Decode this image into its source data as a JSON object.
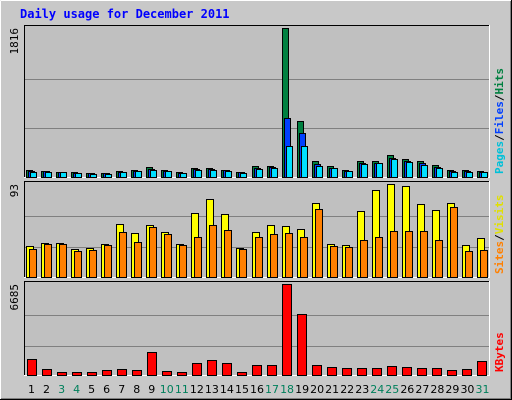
{
  "chart_data": {
    "type": "bar",
    "title": "Daily usage for December 2011",
    "categories": [
      "1",
      "2",
      "3",
      "4",
      "5",
      "6",
      "7",
      "8",
      "9",
      "10",
      "11",
      "12",
      "13",
      "14",
      "15",
      "16",
      "17",
      "18",
      "19",
      "20",
      "21",
      "22",
      "23",
      "24",
      "25",
      "26",
      "27",
      "28",
      "29",
      "30",
      "31"
    ],
    "weekend_days": [
      "3",
      "4",
      "10",
      "11",
      "17",
      "18",
      "24",
      "25",
      "31"
    ],
    "panels": [
      {
        "id": "hits",
        "ymax": 1816,
        "ymax_label": "1816",
        "series": [
          {
            "name": "Hits",
            "values": [
              80,
              75,
              65,
              55,
              50,
              50,
              70,
              85,
              120,
              85,
              55,
              110,
              110,
              90,
              65,
              130,
              140,
              1816,
              680,
              190,
              130,
              85,
              195,
              200,
              270,
              220,
              190,
              145,
              80,
              80,
              70
            ]
          },
          {
            "name": "Files",
            "values": [
              70,
              68,
              60,
              52,
              47,
              47,
              60,
              75,
              100,
              75,
              50,
              95,
              95,
              80,
              58,
              110,
              120,
              720,
              540,
              160,
              115,
              75,
              170,
              175,
              230,
              190,
              165,
              125,
              70,
              70,
              62
            ]
          },
          {
            "name": "Pages",
            "values": [
              65,
              62,
              55,
              48,
              42,
              42,
              55,
              70,
              90,
              70,
              45,
              90,
              90,
              72,
              52,
              100,
              110,
              380,
              380,
              140,
              105,
              68,
              160,
              170,
              220,
              180,
              150,
              115,
              65,
              65,
              58
            ]
          }
        ],
        "axis_label": [
          {
            "text": "Pages",
            "color": "#00c0d8"
          },
          {
            "text": "/",
            "color": "#000000"
          },
          {
            "text": "Files",
            "color": "#0040ff"
          },
          {
            "text": "/",
            "color": "#000000"
          },
          {
            "text": "Hits",
            "color": "#008040"
          }
        ]
      },
      {
        "id": "visits",
        "ymax": 93,
        "ymax_label": "93",
        "series": [
          {
            "name": "Visits",
            "values": [
              31,
              34,
              34,
              28,
              29,
              33,
              53,
              44,
              52,
              45,
              33,
              64,
              78,
              63,
              29,
              45,
              52,
              51,
              48,
              74,
              33,
              32,
              66,
              87,
              93,
              91,
              73,
              67,
              74,
              32,
              39
            ]
          },
          {
            "name": "Sites",
            "values": [
              28,
              33,
              33,
              26,
              27,
              32,
              45,
              35,
              50,
              43,
              32,
              40,
              52,
              47,
              28,
              40,
              43,
              44,
              40,
              68,
              31,
              30,
              37,
              40,
              46,
              46,
              46,
              37,
              70,
              26,
              27
            ]
          }
        ],
        "axis_label": [
          {
            "text": "Sites",
            "color": "#ff8000"
          },
          {
            "text": "/",
            "color": "#000000"
          },
          {
            "text": "Visits",
            "color": "#e0e000"
          }
        ]
      },
      {
        "id": "kbytes",
        "ymax": 6685,
        "ymax_label": "6685",
        "series": [
          {
            "name": "KBytes",
            "values": [
              1200,
              450,
              250,
              200,
              220,
              350,
              450,
              380,
              1700,
              300,
              250,
              900,
              1100,
              850,
              200,
              700,
              750,
              6685,
              4500,
              700,
              600,
              480,
              500,
              550,
              650,
              560,
              550,
              550,
              400,
              420,
              1000
            ]
          }
        ],
        "axis_label": [
          {
            "text": "KBytes",
            "color": "#ff0000"
          }
        ]
      }
    ],
    "colors": {
      "Hits": "#008040",
      "Files": "#0040ff",
      "Pages": "#00e0ff",
      "Visits": "#ffff00",
      "Sites": "#ff8000",
      "KBytes": "#ff0000",
      "title": "#0000ff",
      "weekday_label": "#000000",
      "weekend_label": "#00805c",
      "plot_bg": "#c0c0c0",
      "page_bg": "#c8c8c8",
      "grid": "#808080"
    }
  }
}
